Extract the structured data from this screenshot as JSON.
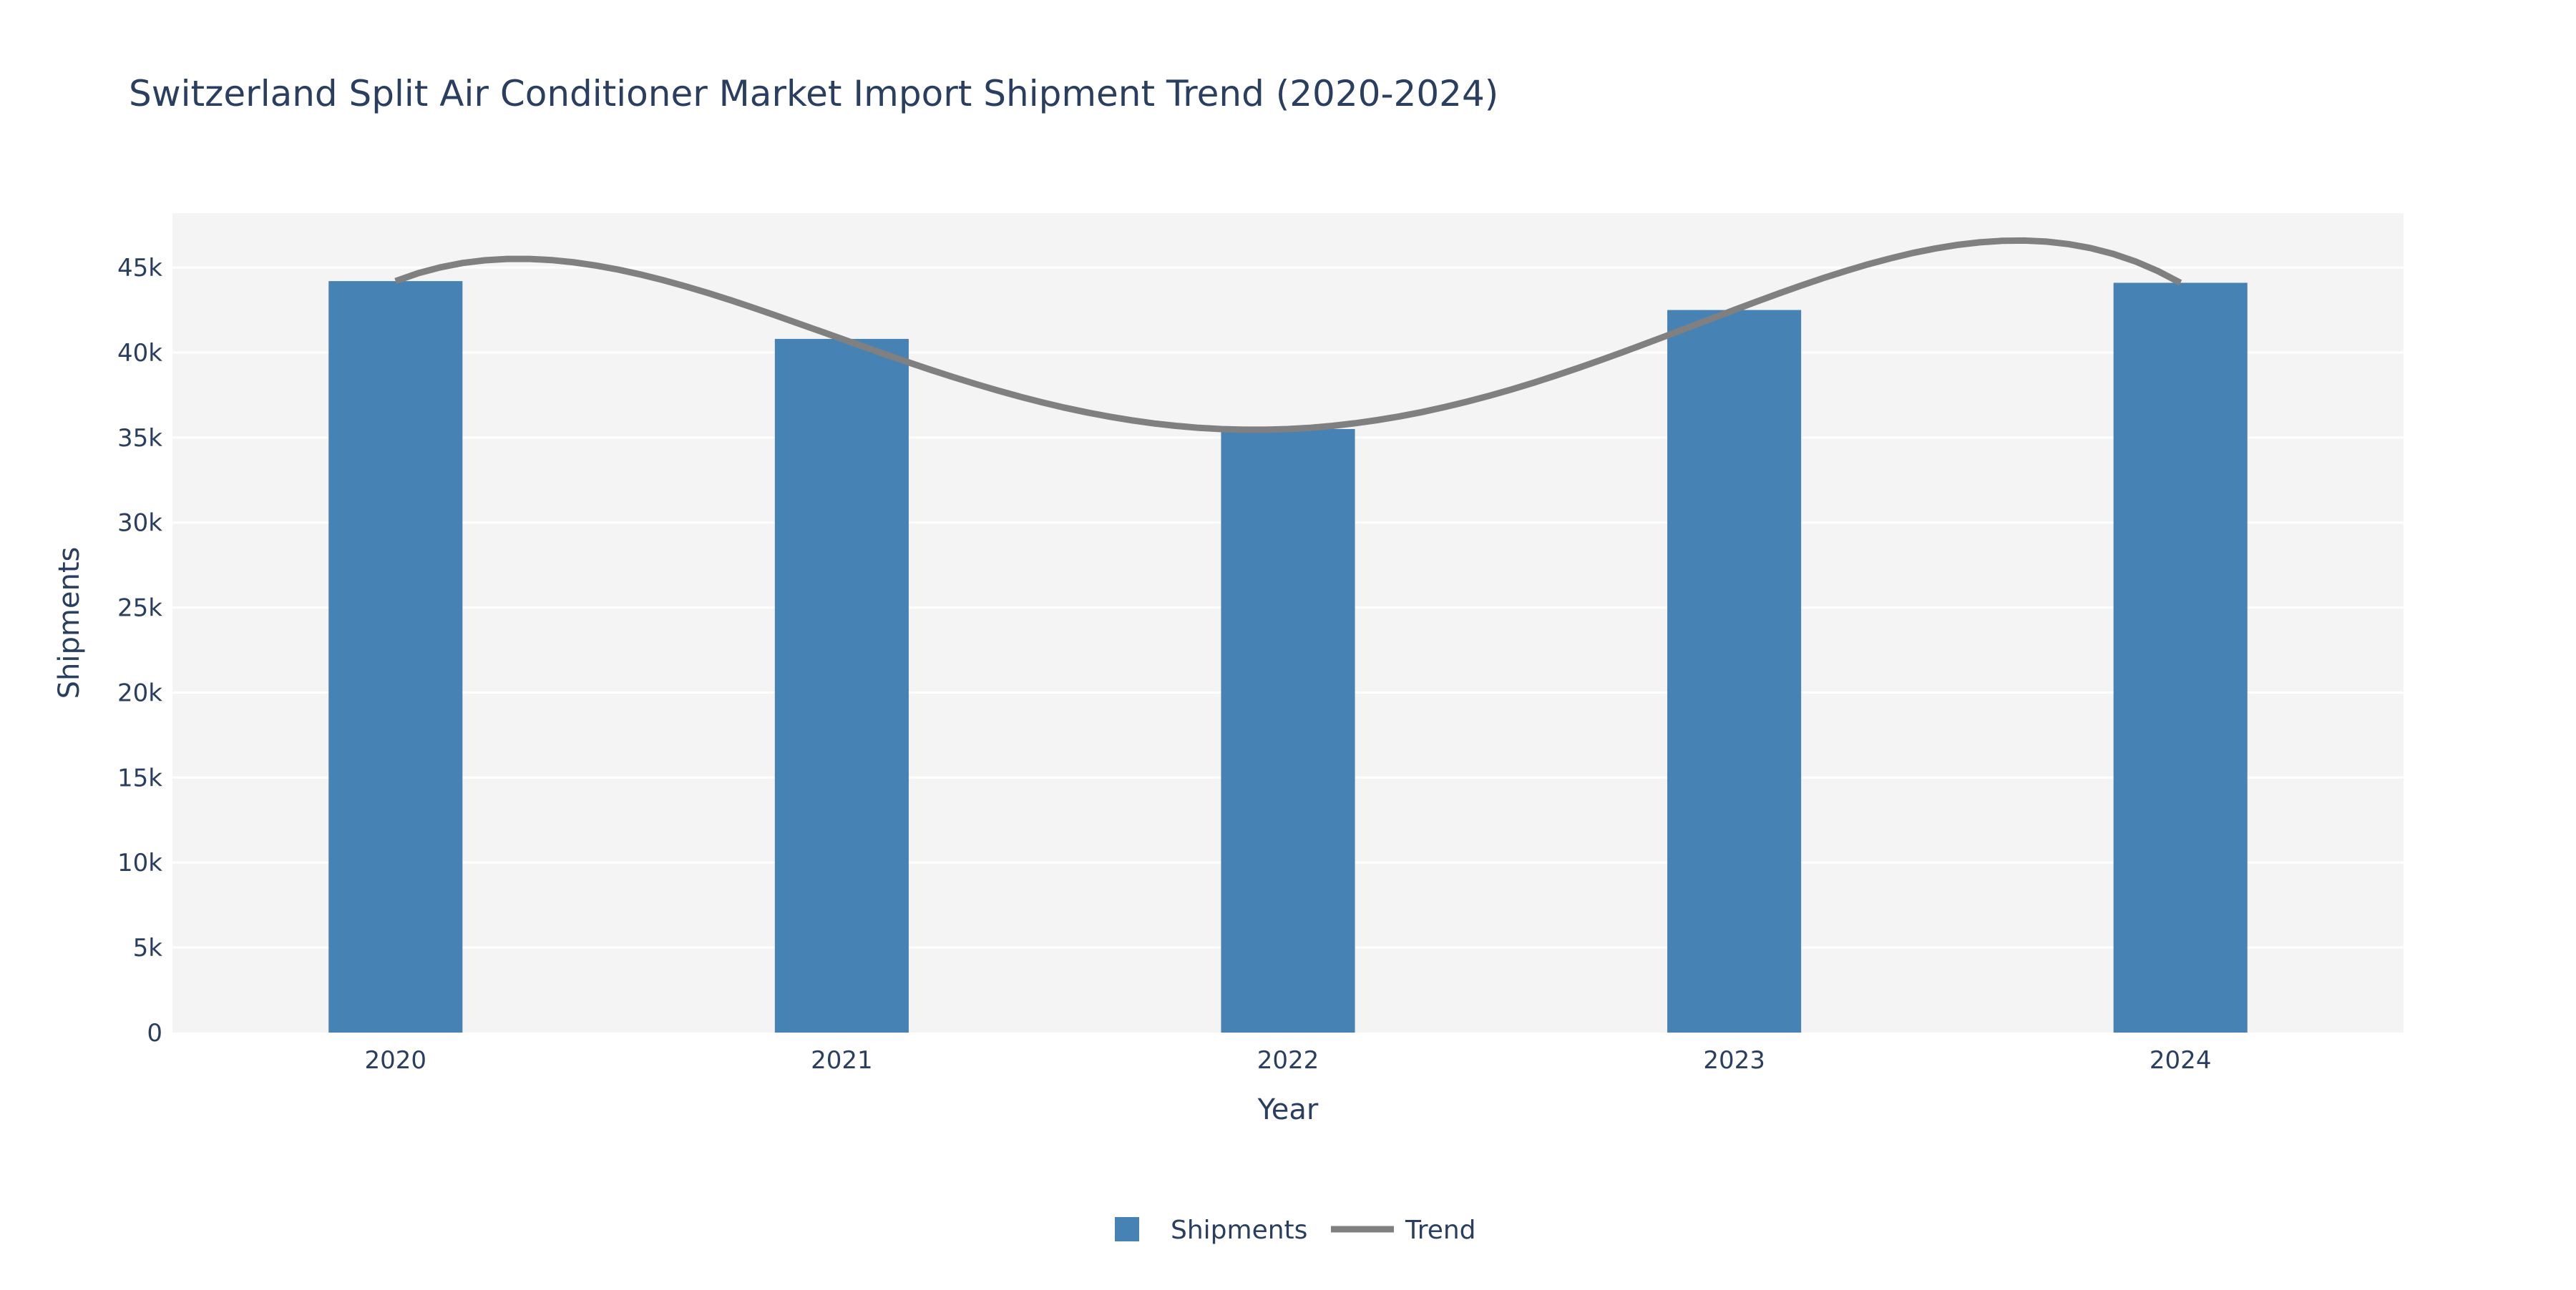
{
  "chart_data": {
    "type": "bar",
    "title": "Switzerland Split Air Conditioner Market Import Shipment Trend (2020-2024)",
    "xlabel": "Year",
    "ylabel": "Shipments",
    "categories": [
      "2020",
      "2021",
      "2022",
      "2023",
      "2024"
    ],
    "x": [
      2020,
      2021,
      2022,
      2023,
      2024
    ],
    "xlim": [
      2019.5,
      2024.5
    ],
    "ylim": [
      0,
      48200
    ],
    "yticks": [
      0,
      5000,
      10000,
      15000,
      20000,
      25000,
      30000,
      35000,
      40000,
      45000
    ],
    "ytick_labels": [
      "0",
      "5k",
      "10k",
      "15k",
      "20k",
      "25k",
      "30k",
      "35k",
      "40k",
      "45k"
    ],
    "grid": true,
    "legend_position": "bottom-center",
    "series": [
      {
        "name": "Shipments",
        "type": "bar",
        "color": "#4682b4",
        "values": [
          44200,
          40800,
          35500,
          42500,
          44100
        ]
      },
      {
        "name": "Trend",
        "type": "line",
        "smoothing": "polynomial-fit",
        "color": "#808080",
        "values": [
          44200,
          40800,
          35500,
          42500,
          44100
        ]
      }
    ]
  },
  "colors": {
    "plot_bg": "#f4f4f4",
    "grid": "#ffffff",
    "text": "#2a3f5f"
  }
}
